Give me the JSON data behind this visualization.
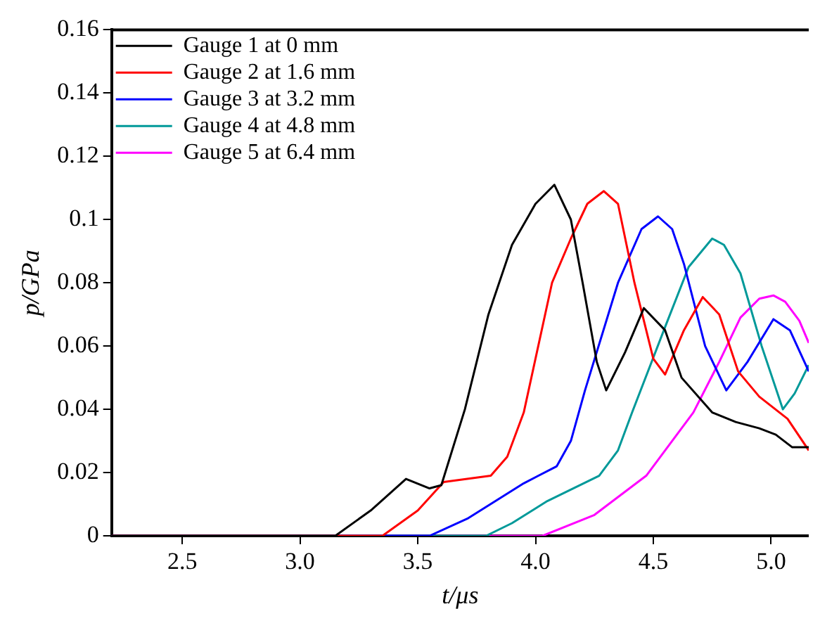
{
  "chart_data": {
    "type": "line",
    "xlabel": "t/μs",
    "ylabel": "p/GPa",
    "xlim": [
      2.2,
      5.16
    ],
    "ylim": [
      0,
      0.16
    ],
    "xticks": [
      2.5,
      {
        "value": 3,
        "label": "3.0"
      },
      3.5,
      {
        "value": 4,
        "label": "4.0"
      },
      4.5,
      {
        "value": 5,
        "label": "5.0"
      }
    ],
    "yticks": [
      0,
      0.02,
      0.04,
      0.06,
      0.08,
      0.1,
      0.12,
      0.14,
      0.16
    ],
    "grid": false,
    "legend": "top left",
    "marker": "none",
    "line_style": "solid",
    "series": [
      {
        "name": "Gauge 1 at 0 mm",
        "color": "#000000",
        "x": [
          2.2,
          3.15,
          3.3,
          3.45,
          3.55,
          3.6,
          3.7,
          3.8,
          3.9,
          4.0,
          4.08,
          4.15,
          4.2,
          4.26,
          4.3,
          4.38,
          4.46,
          4.55,
          4.62,
          4.75,
          4.85,
          4.95,
          5.02,
          5.09,
          5.16
        ],
        "values": [
          0,
          0,
          0.008,
          0.018,
          0.015,
          0.016,
          0.04,
          0.07,
          0.092,
          0.105,
          0.111,
          0.1,
          0.08,
          0.055,
          0.046,
          0.058,
          0.072,
          0.065,
          0.05,
          0.039,
          0.036,
          0.034,
          0.032,
          0.028,
          0.028
        ]
      },
      {
        "name": "Gauge 2 at 1.6 mm",
        "color": "#ff0000",
        "x": [
          2.2,
          3.35,
          3.5,
          3.61,
          3.81,
          3.88,
          3.95,
          4.07,
          4.15,
          4.22,
          4.29,
          4.35,
          4.42,
          4.5,
          4.55,
          4.63,
          4.71,
          4.78,
          4.86,
          4.95,
          5.07,
          5.16
        ],
        "values": [
          0,
          0,
          0.008,
          0.017,
          0.019,
          0.025,
          0.039,
          0.08,
          0.094,
          0.105,
          0.109,
          0.105,
          0.08,
          0.056,
          0.051,
          0.065,
          0.0755,
          0.07,
          0.052,
          0.044,
          0.037,
          0.027
        ]
      },
      {
        "name": "Gauge 3 at 3.2 mm",
        "color": "#0000ff",
        "x": [
          2.2,
          3.55,
          3.71,
          3.95,
          4.09,
          4.15,
          4.21,
          4.35,
          4.45,
          4.52,
          4.58,
          4.63,
          4.72,
          4.81,
          4.9,
          5.01,
          5.08,
          5.16
        ],
        "values": [
          0,
          0,
          0.0054,
          0.0166,
          0.022,
          0.03,
          0.046,
          0.08,
          0.097,
          0.101,
          0.097,
          0.086,
          0.06,
          0.046,
          0.055,
          0.0685,
          0.065,
          0.052
        ]
      },
      {
        "name": "Gauge 4 at 4.8 mm",
        "color": "#009999",
        "x": [
          2.2,
          3.79,
          3.9,
          4.05,
          4.27,
          4.35,
          4.41,
          4.55,
          4.65,
          4.75,
          4.8,
          4.87,
          4.96,
          5.05,
          5.1,
          5.16
        ],
        "values": [
          0,
          0,
          0.004,
          0.011,
          0.019,
          0.027,
          0.039,
          0.066,
          0.085,
          0.094,
          0.092,
          0.083,
          0.06,
          0.04,
          0.045,
          0.054
        ]
      },
      {
        "name": "Gauge 5 at 6.4 mm",
        "color": "#ff00ff",
        "x": [
          2.2,
          4.03,
          4.25,
          4.47,
          4.67,
          4.78,
          4.87,
          4.95,
          5.01,
          5.06,
          5.12,
          5.16
        ],
        "values": [
          0,
          0,
          0.0066,
          0.019,
          0.039,
          0.055,
          0.069,
          0.075,
          0.076,
          0.074,
          0.068,
          0.061
        ]
      }
    ]
  }
}
